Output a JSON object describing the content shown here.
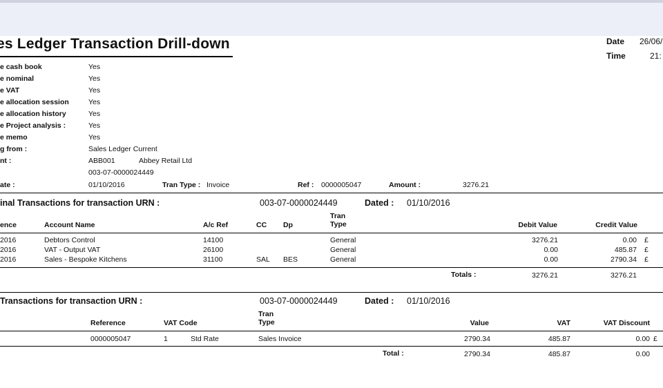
{
  "report": {
    "title": "es Ledger Transaction Drill-down",
    "date_label": "Date",
    "date_value": "26/06/",
    "time_label": "Time",
    "time_value": "21:"
  },
  "details": [
    {
      "label": "e cash book",
      "value": "Yes"
    },
    {
      "label": "e nominal",
      "value": "Yes"
    },
    {
      "label": "e VAT",
      "value": "Yes"
    },
    {
      "label": "e allocation session",
      "value": "Yes"
    },
    {
      "label": "e allocation history",
      "value": "Yes"
    },
    {
      "label": "e Project analysis :",
      "value": "Yes"
    },
    {
      "label": "e memo",
      "value": "Yes"
    },
    {
      "label": "g from :",
      "value": "Sales Ledger Current"
    },
    {
      "label": "nt :",
      "value": "ABB001"
    }
  ],
  "account_name": "Abbey Retail Ltd",
  "urn": "003-07-0000024449",
  "summary": {
    "date_label": "ate :",
    "date_value": "01/10/2016",
    "tran_type_label": "Tran Type :",
    "tran_type_value": "Invoice",
    "ref_label": "Ref :",
    "ref_value": "0000005047",
    "amount_label": "Amount :",
    "amount_value": "3276.21"
  },
  "nominal": {
    "heading": "inal Transactions for transaction URN :",
    "urn": "003-07-0000024449",
    "dated_label": "Dated :",
    "dated_value": "01/10/2016",
    "columns": {
      "reference": "ence",
      "account_name": "Account Name",
      "ac_ref": "A/c Ref",
      "cc": "CC",
      "dp": "Dp",
      "tran_type_1": "Tran",
      "tran_type_2": "Type",
      "debit": "Debit Value",
      "credit": "Credit Value"
    },
    "rows": [
      {
        "ref": "2016",
        "account": "Debtors Control",
        "ac_ref": "14100",
        "cc": "",
        "dp": "",
        "type": "General",
        "debit": "3276.21",
        "credit": "0.00",
        "cur": "£"
      },
      {
        "ref": "2016",
        "account": "VAT - Output VAT",
        "ac_ref": "26100",
        "cc": "",
        "dp": "",
        "type": "General",
        "debit": "0.00",
        "credit": "485.87",
        "cur": "£"
      },
      {
        "ref": "2016",
        "account": "Sales - Bespoke Kitchens",
        "ac_ref": "31100",
        "cc": "SAL",
        "dp": "BES",
        "type": "General",
        "debit": "0.00",
        "credit": "2790.34",
        "cur": "£"
      }
    ],
    "totals_label": "Totals :",
    "total_debit": "3276.21",
    "total_credit": "3276.21"
  },
  "vat": {
    "heading": "Transactions for transaction URN :",
    "urn": "003-07-0000024449",
    "dated_label": "Dated :",
    "dated_value": "01/10/2016",
    "columns": {
      "reference": "Reference",
      "vat_code": "VAT Code",
      "tran_type_1": "Tran",
      "tran_type_2": "Type",
      "value": "Value",
      "vat": "VAT",
      "vat_discount": "VAT Discount"
    },
    "rows": [
      {
        "reference": "0000005047",
        "code": "1",
        "rate": "Std Rate",
        "type": "Sales Invoice",
        "value": "2790.34",
        "vat": "485.87",
        "discount": "0.00",
        "cur": "£"
      }
    ],
    "total_label": "Total :",
    "total_value": "2790.34",
    "total_vat": "485.87",
    "total_discount": "0.00"
  }
}
